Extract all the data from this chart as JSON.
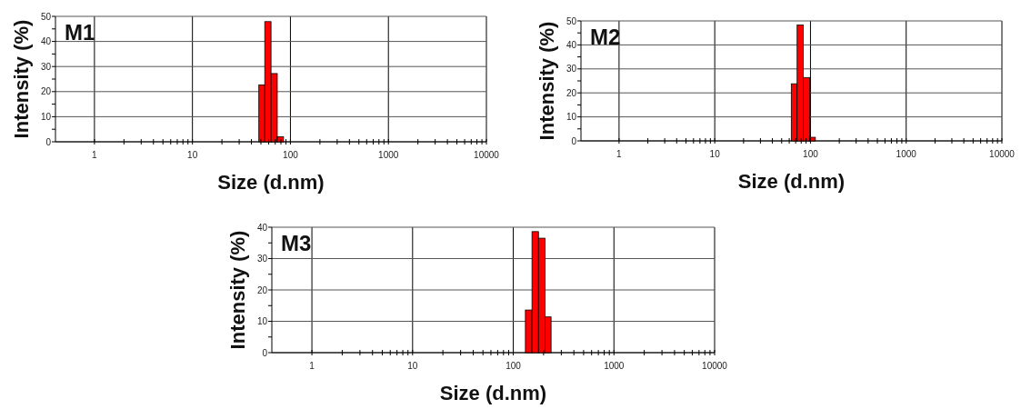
{
  "chart_data": [
    {
      "type": "histogram",
      "title": "M1",
      "xlabel": "Size (d.nm)",
      "ylabel": "Intensity (%)",
      "bins": [
        47.6,
        54.7,
        63.4,
        73.4,
        85.1
      ],
      "values": [
        22.7,
        47.9,
        27.2,
        2.0
      ],
      "color": "#ff0000",
      "log": "x",
      "grid": true,
      "xlim": [
        0.4,
        10000
      ],
      "ylim": [
        0,
        50
      ],
      "xticks": [
        1,
        {
          "value": 2,
          "label": null
        },
        {
          "value": 3,
          "label": null
        },
        {
          "value": 4,
          "label": null
        },
        {
          "value": 5,
          "label": null
        },
        {
          "value": 6,
          "label": null
        },
        {
          "value": 7,
          "label": null
        },
        {
          "value": 8,
          "label": null
        },
        {
          "value": 9,
          "label": null
        },
        10,
        {
          "value": 20,
          "label": null
        },
        {
          "value": 30,
          "label": null
        },
        {
          "value": 40,
          "label": null
        },
        {
          "value": 50,
          "label": null
        },
        {
          "value": 60,
          "label": null
        },
        {
          "value": 70,
          "label": null
        },
        {
          "value": 80,
          "label": null
        },
        {
          "value": 90,
          "label": null
        },
        100,
        {
          "value": 200,
          "label": null
        },
        {
          "value": 300,
          "label": null
        },
        {
          "value": 400,
          "label": null
        },
        {
          "value": 500,
          "label": null
        },
        {
          "value": 600,
          "label": null
        },
        {
          "value": 700,
          "label": null
        },
        {
          "value": 800,
          "label": null
        },
        {
          "value": 900,
          "label": null
        },
        1000,
        {
          "value": 2000,
          "label": null
        },
        {
          "value": 3000,
          "label": null
        },
        {
          "value": 4000,
          "label": null
        },
        {
          "value": 5000,
          "label": null
        },
        {
          "value": 6000,
          "label": null
        },
        {
          "value": 7000,
          "label": null
        },
        {
          "value": 8000,
          "label": null
        },
        {
          "value": 9000,
          "label": null
        },
        10000
      ],
      "yticks": [
        0,
        {
          "value": 5,
          "label": null
        },
        10,
        {
          "value": 15,
          "label": null
        },
        20,
        {
          "value": 25,
          "label": null
        },
        30,
        {
          "value": 35,
          "label": null
        },
        40,
        {
          "value": 45,
          "label": null
        },
        50
      ]
    },
    {
      "type": "histogram",
      "title": "M2",
      "xlabel": "Size (d.nm)",
      "ylabel": "Intensity (%)",
      "bins": [
        63.0,
        72.5,
        84.1,
        98.4,
        112.5
      ],
      "values": [
        23.8,
        48.3,
        26.4,
        1.5
      ],
      "color": "#ff0000",
      "log": "x",
      "grid": true,
      "xlim": [
        0.4,
        10000
      ],
      "ylim": [
        0,
        50
      ],
      "xticks": [
        1,
        {
          "value": 2,
          "label": null
        },
        {
          "value": 3,
          "label": null
        },
        {
          "value": 4,
          "label": null
        },
        {
          "value": 5,
          "label": null
        },
        {
          "value": 6,
          "label": null
        },
        {
          "value": 7,
          "label": null
        },
        {
          "value": 8,
          "label": null
        },
        {
          "value": 9,
          "label": null
        },
        10,
        {
          "value": 20,
          "label": null
        },
        {
          "value": 30,
          "label": null
        },
        {
          "value": 40,
          "label": null
        },
        {
          "value": 50,
          "label": null
        },
        {
          "value": 60,
          "label": null
        },
        {
          "value": 70,
          "label": null
        },
        {
          "value": 80,
          "label": null
        },
        {
          "value": 90,
          "label": null
        },
        100,
        {
          "value": 200,
          "label": null
        },
        {
          "value": 300,
          "label": null
        },
        {
          "value": 400,
          "label": null
        },
        {
          "value": 500,
          "label": null
        },
        {
          "value": 600,
          "label": null
        },
        {
          "value": 700,
          "label": null
        },
        {
          "value": 800,
          "label": null
        },
        {
          "value": 900,
          "label": null
        },
        1000,
        {
          "value": 2000,
          "label": null
        },
        {
          "value": 3000,
          "label": null
        },
        {
          "value": 4000,
          "label": null
        },
        {
          "value": 5000,
          "label": null
        },
        {
          "value": 6000,
          "label": null
        },
        {
          "value": 7000,
          "label": null
        },
        {
          "value": 8000,
          "label": null
        },
        {
          "value": 9000,
          "label": null
        },
        10000
      ],
      "yticks": [
        0,
        {
          "value": 5,
          "label": null
        },
        10,
        {
          "value": 15,
          "label": null
        },
        20,
        {
          "value": 25,
          "label": null
        },
        30,
        {
          "value": 35,
          "label": null
        },
        40,
        {
          "value": 45,
          "label": null
        },
        50
      ]
    },
    {
      "type": "histogram",
      "title": "M3",
      "xlabel": "Size (d.nm)",
      "ylabel": "Intensity (%)",
      "bins": [
        132,
        153.5,
        178,
        206.5,
        237.5
      ],
      "values": [
        13.6,
        38.6,
        36.5,
        11.4
      ],
      "color": "#ff0000",
      "log": "x",
      "grid": true,
      "xlim": [
        0.4,
        10000
      ],
      "ylim": [
        0,
        40
      ],
      "xticks": [
        1,
        {
          "value": 2,
          "label": null
        },
        {
          "value": 3,
          "label": null
        },
        {
          "value": 4,
          "label": null
        },
        {
          "value": 5,
          "label": null
        },
        {
          "value": 6,
          "label": null
        },
        {
          "value": 7,
          "label": null
        },
        {
          "value": 8,
          "label": null
        },
        {
          "value": 9,
          "label": null
        },
        10,
        {
          "value": 20,
          "label": null
        },
        {
          "value": 30,
          "label": null
        },
        {
          "value": 40,
          "label": null
        },
        {
          "value": 50,
          "label": null
        },
        {
          "value": 60,
          "label": null
        },
        {
          "value": 70,
          "label": null
        },
        {
          "value": 80,
          "label": null
        },
        {
          "value": 90,
          "label": null
        },
        100,
        {
          "value": 200,
          "label": null
        },
        {
          "value": 300,
          "label": null
        },
        {
          "value": 400,
          "label": null
        },
        {
          "value": 500,
          "label": null
        },
        {
          "value": 600,
          "label": null
        },
        {
          "value": 700,
          "label": null
        },
        {
          "value": 800,
          "label": null
        },
        {
          "value": 900,
          "label": null
        },
        1000,
        {
          "value": 2000,
          "label": null
        },
        {
          "value": 3000,
          "label": null
        },
        {
          "value": 4000,
          "label": null
        },
        {
          "value": 5000,
          "label": null
        },
        {
          "value": 6000,
          "label": null
        },
        {
          "value": 7000,
          "label": null
        },
        {
          "value": 8000,
          "label": null
        },
        {
          "value": 9000,
          "label": null
        },
        10000
      ],
      "yticks": [
        0,
        {
          "value": 5,
          "label": null
        },
        10,
        {
          "value": 15,
          "label": null
        },
        20,
        {
          "value": 25,
          "label": null
        },
        30,
        {
          "value": 35,
          "label": null
        },
        40
      ]
    }
  ]
}
